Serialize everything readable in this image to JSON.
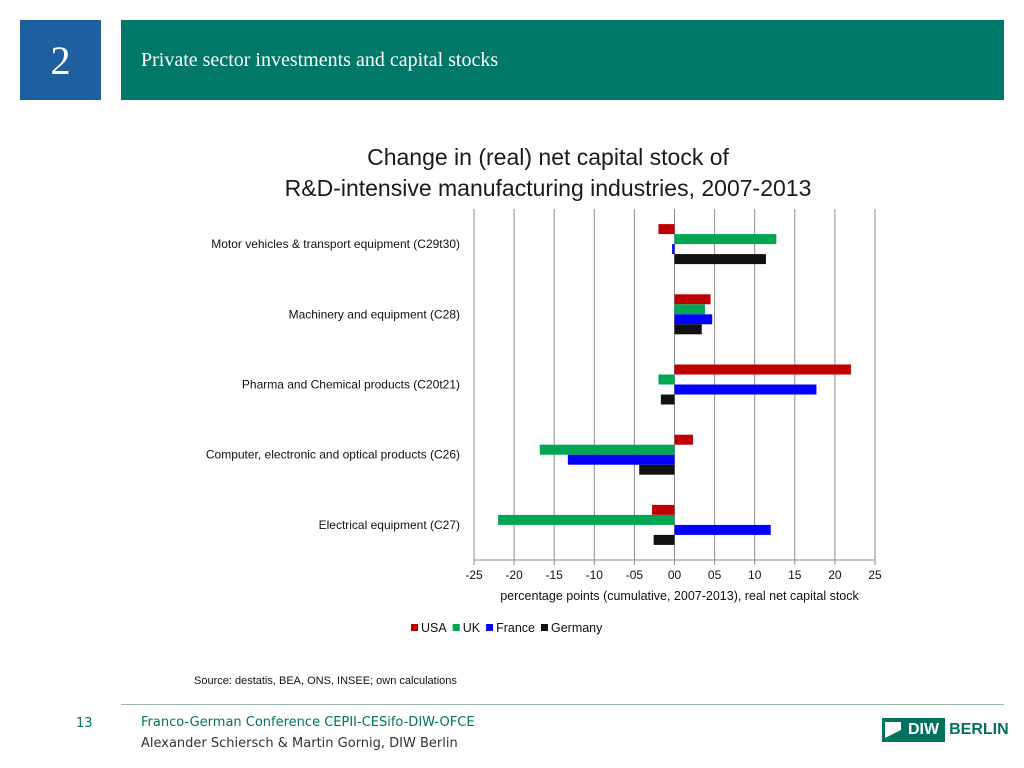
{
  "slide": {
    "section_number": "2",
    "header_title": "Private sector investments and capital stocks",
    "source": "Source:  destatis, BEA, ONS, INSEE; own calculations",
    "page_number": "13",
    "footer_line1": "Franco-German Conference CEPII-CESifo-DIW-OFCE",
    "footer_line2": "Alexander Schiersch & Martin Gornig, DIW Berlin",
    "logo_diw": "DIW",
    "logo_berlin": "BERLIN"
  },
  "colors": {
    "section_box": "#1f5fa0",
    "header_bar": "#007868",
    "footer_text": "#00735f",
    "logo_green": "#00735f",
    "usa": "#c00000",
    "uk": "#00a651",
    "france": "#0000ff",
    "germany": "#111111"
  },
  "chart_data": {
    "type": "bar",
    "orientation": "horizontal",
    "title_lines": [
      "Change in (real) net capital stock of",
      "R&D-intensive manufacturing industries, 2007-2013"
    ],
    "xlabel": "percentage points (cumulative, 2007-2013), real net capital stock",
    "ylabel": "",
    "xlim": [
      -25,
      25
    ],
    "x_ticks": [
      -25,
      -20,
      -15,
      -10,
      -5,
      0,
      5,
      10,
      15,
      20,
      25
    ],
    "x_tick_labels": [
      "-25",
      "-20",
      "-15",
      "-10",
      "-05",
      "00",
      "05",
      "10",
      "15",
      "20",
      "25"
    ],
    "grid": "vertical",
    "legend_position": "bottom",
    "categories": [
      "Motor vehicles & transport equipment  (C29t30)",
      "Machinery and equipment (C28)",
      "Pharma and Chemical products (C20t21)",
      "Computer, electronic and optical products (C26)",
      "Electrical equipment (C27)"
    ],
    "series": [
      {
        "name": "USA",
        "color": "#c00000",
        "values": [
          -2.0,
          4.5,
          22.0,
          2.3,
          -2.8
        ]
      },
      {
        "name": "UK",
        "color": "#00a651",
        "values": [
          12.7,
          3.8,
          -2.0,
          -16.8,
          -22.0
        ]
      },
      {
        "name": "France",
        "color": "#0000ff",
        "values": [
          -0.3,
          4.7,
          17.7,
          -13.3,
          12.0
        ]
      },
      {
        "name": "Germany",
        "color": "#111111",
        "values": [
          11.4,
          3.4,
          -1.7,
          -4.4,
          -2.6
        ]
      }
    ]
  }
}
